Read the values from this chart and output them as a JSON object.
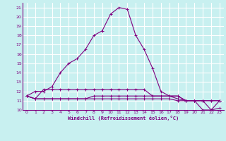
{
  "xlabel": "Windchill (Refroidissement éolien,°C)",
  "xlim": [
    -0.5,
    23.5
  ],
  "ylim": [
    10,
    21.5
  ],
  "yticks": [
    10,
    11,
    12,
    13,
    14,
    15,
    16,
    17,
    18,
    19,
    20,
    21
  ],
  "xticks": [
    0,
    1,
    2,
    3,
    4,
    5,
    6,
    7,
    8,
    9,
    10,
    11,
    12,
    13,
    14,
    15,
    16,
    17,
    18,
    19,
    20,
    21,
    22,
    23
  ],
  "bg_color": "#c8f0f0",
  "line_color": "#800080",
  "grid_color": "#ffffff",
  "series": [
    [
      11.5,
      12.0,
      12.0,
      12.5,
      14.0,
      15.0,
      15.5,
      16.5,
      18.0,
      18.5,
      20.3,
      21.0,
      20.8,
      18.0,
      16.5,
      14.5,
      12.0,
      11.5,
      11.5,
      11.0,
      11.0,
      10.0,
      10.0,
      11.0
    ],
    [
      11.5,
      11.2,
      12.2,
      12.2,
      12.2,
      12.2,
      12.2,
      12.2,
      12.2,
      12.2,
      12.2,
      12.2,
      12.2,
      12.2,
      12.2,
      11.5,
      11.5,
      11.5,
      11.5,
      11.0,
      11.0,
      11.0,
      11.0,
      11.0
    ],
    [
      11.5,
      11.2,
      11.2,
      11.2,
      11.2,
      11.2,
      11.2,
      11.2,
      11.2,
      11.2,
      11.2,
      11.2,
      11.2,
      11.2,
      11.2,
      11.2,
      11.2,
      11.2,
      11.0,
      11.0,
      11.0,
      11.0,
      11.0,
      11.0
    ],
    [
      11.5,
      11.2,
      11.2,
      11.2,
      11.2,
      11.2,
      11.2,
      11.2,
      11.5,
      11.5,
      11.5,
      11.5,
      11.5,
      11.5,
      11.5,
      11.5,
      11.5,
      11.5,
      11.2,
      11.0,
      11.0,
      11.0,
      10.0,
      10.2
    ]
  ]
}
